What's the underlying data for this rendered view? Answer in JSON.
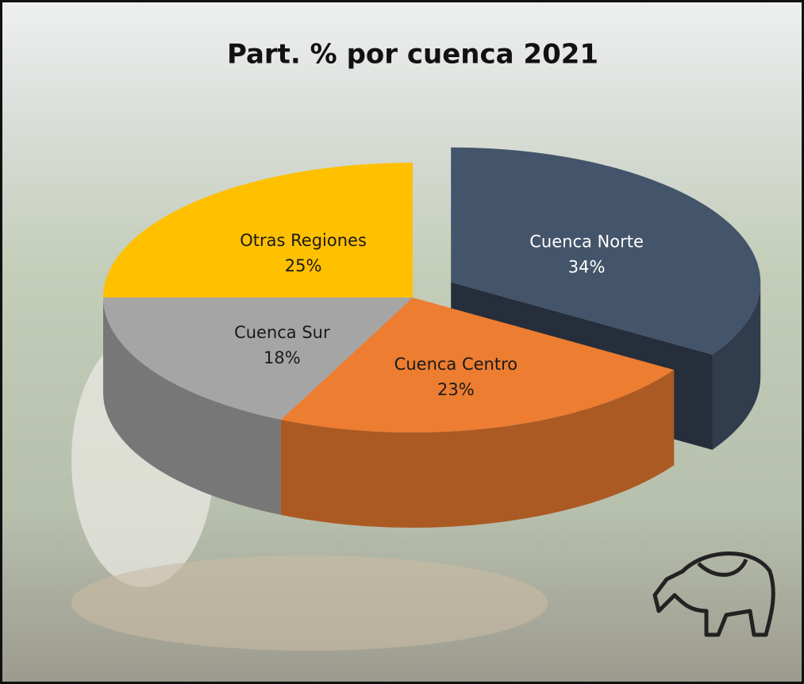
{
  "chart_data": {
    "type": "pie",
    "title": "Part. % por cuenca 2021",
    "categories": [
      "Cuenca Norte",
      "Cuenca Centro",
      "Cuenca Sur",
      "Otras Regiones"
    ],
    "values": [
      34,
      23,
      18,
      25
    ],
    "value_labels": [
      "34%",
      "23%",
      "18%",
      "25%"
    ],
    "colors": [
      "#44546a",
      "#ed7d31",
      "#a5a5a5",
      "#ffc000"
    ]
  }
}
